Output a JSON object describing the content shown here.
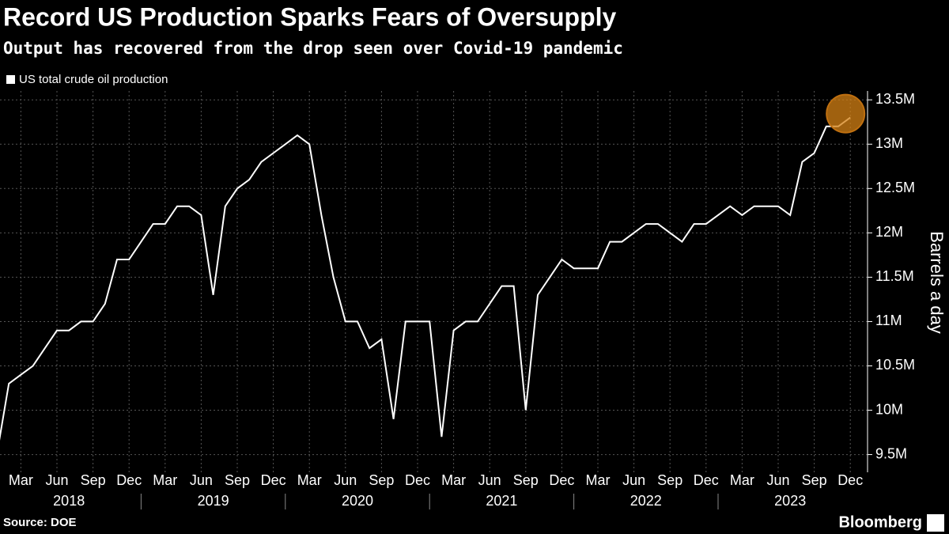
{
  "chart_data": {
    "type": "line",
    "title": "Record US Production Sparks Fears of Oversupply",
    "subtitle": "Output has recovered from the drop seen over Covid-19 pandemic",
    "y_label": "Barrels a day",
    "source": "Source: DOE",
    "brand": "Bloomberg",
    "x": [
      "2018-01",
      "2018-02",
      "2018-03",
      "2018-04",
      "2018-05",
      "2018-06",
      "2018-07",
      "2018-08",
      "2018-09",
      "2018-10",
      "2018-11",
      "2018-12",
      "2019-01",
      "2019-02",
      "2019-03",
      "2019-04",
      "2019-05",
      "2019-06",
      "2019-07",
      "2019-08",
      "2019-09",
      "2019-10",
      "2019-11",
      "2019-12",
      "2020-01",
      "2020-02",
      "2020-03",
      "2020-04",
      "2020-05",
      "2020-06",
      "2020-07",
      "2020-08",
      "2020-09",
      "2020-10",
      "2020-11",
      "2020-12",
      "2021-01",
      "2021-02",
      "2021-03",
      "2021-04",
      "2021-05",
      "2021-06",
      "2021-07",
      "2021-08",
      "2021-09",
      "2021-10",
      "2021-11",
      "2021-12",
      "2022-01",
      "2022-02",
      "2022-03",
      "2022-04",
      "2022-05",
      "2022-06",
      "2022-07",
      "2022-08",
      "2022-09",
      "2022-10",
      "2022-11",
      "2022-12",
      "2023-01",
      "2023-02",
      "2023-03",
      "2023-04",
      "2023-05",
      "2023-06",
      "2023-07",
      "2023-08",
      "2023-09",
      "2023-10",
      "2023-11",
      "2023-12"
    ],
    "series": [
      {
        "name": "US total crude oil production",
        "color": "#ffffff",
        "values": [
          9.5,
          10.3,
          10.4,
          10.5,
          10.7,
          10.9,
          10.9,
          11.0,
          11.0,
          11.2,
          11.7,
          11.7,
          11.9,
          12.1,
          12.1,
          12.3,
          12.3,
          12.2,
          11.3,
          12.3,
          12.5,
          12.6,
          12.8,
          12.9,
          13.0,
          13.1,
          13.0,
          12.2,
          11.5,
          11.0,
          11.0,
          10.7,
          10.8,
          9.9,
          11.0,
          11.0,
          11.0,
          9.7,
          10.9,
          11.0,
          11.0,
          11.2,
          11.4,
          11.4,
          10.0,
          11.3,
          11.5,
          11.7,
          11.6,
          11.6,
          11.6,
          11.9,
          11.9,
          12.0,
          12.1,
          12.1,
          12.0,
          11.9,
          12.1,
          12.1,
          12.2,
          12.3,
          12.2,
          12.3,
          12.3,
          12.3,
          12.2,
          12.8,
          12.9,
          13.2,
          13.2,
          13.3
        ]
      }
    ],
    "ylim": [
      9.3,
      13.6
    ],
    "yticks": [
      {
        "value": 9.5,
        "label": "9.5M"
      },
      {
        "value": 10,
        "label": "10M"
      },
      {
        "value": 10.5,
        "label": "10.5M"
      },
      {
        "value": 11,
        "label": "11M"
      },
      {
        "value": 11.5,
        "label": "11.5M"
      },
      {
        "value": 12,
        "label": "12M"
      },
      {
        "value": 12.5,
        "label": "12.5M"
      },
      {
        "value": 13,
        "label": "13M"
      },
      {
        "value": 13.5,
        "label": "13.5M"
      }
    ],
    "xticks": [
      {
        "value": "2018-03",
        "label": "Mar"
      },
      {
        "value": "2018-06",
        "label": "Jun"
      },
      {
        "value": "2018-09",
        "label": "Sep"
      },
      {
        "value": "2018-12",
        "label": "Dec"
      },
      {
        "value": "2019-03",
        "label": "Mar"
      },
      {
        "value": "2019-06",
        "label": "Jun"
      },
      {
        "value": "2019-09",
        "label": "Sep"
      },
      {
        "value": "2019-12",
        "label": "Dec"
      },
      {
        "value": "2020-03",
        "label": "Mar"
      },
      {
        "value": "2020-06",
        "label": "Jun"
      },
      {
        "value": "2020-09",
        "label": "Sep"
      },
      {
        "value": "2020-12",
        "label": "Dec"
      },
      {
        "value": "2021-03",
        "label": "Mar"
      },
      {
        "value": "2021-06",
        "label": "Jun"
      },
      {
        "value": "2021-09",
        "label": "Sep"
      },
      {
        "value": "2021-12",
        "label": "Dec"
      },
      {
        "value": "2022-03",
        "label": "Mar"
      },
      {
        "value": "2022-06",
        "label": "Jun"
      },
      {
        "value": "2022-09",
        "label": "Sep"
      },
      {
        "value": "2022-12",
        "label": "Dec"
      },
      {
        "value": "2023-03",
        "label": "Mar"
      },
      {
        "value": "2023-06",
        "label": "Jun"
      },
      {
        "value": "2023-09",
        "label": "Sep"
      },
      {
        "value": "2023-12",
        "label": "Dec"
      }
    ],
    "years": [
      "2018",
      "2019",
      "2020",
      "2021",
      "2022",
      "2023"
    ],
    "grid": true
  }
}
